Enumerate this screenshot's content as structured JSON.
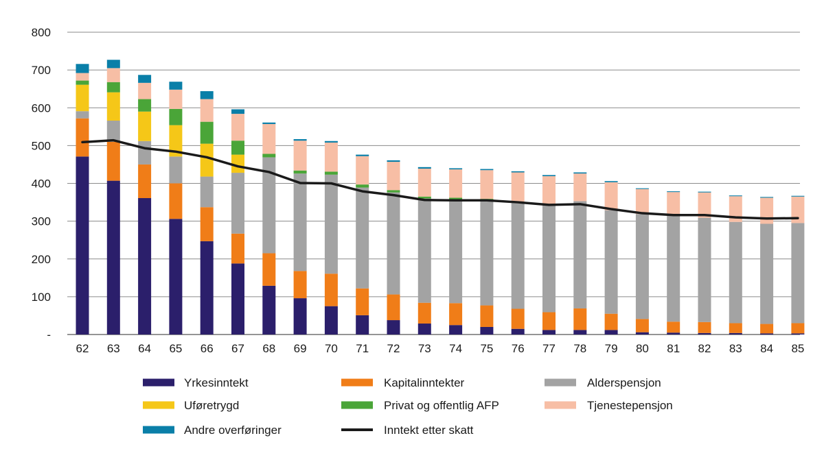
{
  "chart_data": {
    "type": "bar",
    "stacked": true,
    "title": "",
    "xlabel": "",
    "ylabel": "",
    "ylim": [
      0,
      800
    ],
    "yticks": [
      0,
      100,
      200,
      300,
      400,
      500,
      600,
      700,
      800
    ],
    "ytick_labels": [
      "-",
      "100",
      "200",
      "300",
      "400",
      "500",
      "600",
      "700",
      "800"
    ],
    "grid": true,
    "categories": [
      "62",
      "63",
      "64",
      "65",
      "66",
      "67",
      "68",
      "69",
      "70",
      "71",
      "72",
      "73",
      "74",
      "75",
      "76",
      "77",
      "78",
      "79",
      "80",
      "81",
      "82",
      "83",
      "84",
      "85"
    ],
    "series": [
      {
        "name": "Yrkesinntekt",
        "color": "#2b1f6b",
        "values": [
          471,
          407,
          361,
          306,
          247,
          188,
          129,
          96,
          75,
          51,
          38,
          29,
          25,
          20,
          15,
          12,
          12,
          12,
          6,
          5,
          4,
          4,
          3,
          3
        ]
      },
      {
        "name": "Kapitalinntekter",
        "color": "#f07d18",
        "values": [
          101,
          103,
          89,
          94,
          90,
          79,
          86,
          72,
          86,
          71,
          68,
          55,
          58,
          57,
          53,
          47,
          57,
          43,
          35,
          29,
          29,
          26,
          25,
          27
        ]
      },
      {
        "name": "Alderspensjon",
        "color": "#a3a3a3",
        "values": [
          19,
          56,
          62,
          71,
          81,
          161,
          254,
          258,
          262,
          267,
          270,
          276,
          275,
          279,
          282,
          283,
          284,
          274,
          278,
          280,
          276,
          268,
          265,
          265
        ]
      },
      {
        "name": "Uføretrygd",
        "color": "#f5c718",
        "values": [
          70,
          75,
          78,
          83,
          87,
          48,
          0,
          0,
          0,
          0,
          0,
          0,
          0,
          0,
          0,
          0,
          0,
          0,
          0,
          0,
          0,
          0,
          0,
          0
        ]
      },
      {
        "name": "Privat og offentlig AFP",
        "color": "#4aa538",
        "values": [
          11,
          27,
          33,
          43,
          58,
          37,
          9,
          8,
          8,
          8,
          6,
          5,
          4,
          3,
          0,
          0,
          0,
          0,
          0,
          0,
          0,
          0,
          0,
          0
        ]
      },
      {
        "name": "Tjenestepensjon",
        "color": "#f7bea5",
        "values": [
          20,
          37,
          43,
          51,
          60,
          71,
          79,
          79,
          77,
          75,
          75,
          74,
          75,
          76,
          79,
          77,
          73,
          74,
          66,
          63,
          67,
          68,
          69,
          70
        ]
      },
      {
        "name": "Andre overføringer",
        "color": "#0a7fa8",
        "values": [
          24,
          22,
          21,
          21,
          21,
          12,
          4,
          4,
          4,
          4,
          4,
          4,
          3,
          3,
          3,
          3,
          3,
          3,
          2,
          2,
          2,
          2,
          2,
          2
        ]
      }
    ],
    "line": {
      "name": "Inntekt etter skatt",
      "color": "#1a1a1a",
      "values": [
        509,
        514,
        493,
        484,
        469,
        445,
        430,
        401,
        400,
        379,
        369,
        356,
        355,
        355,
        350,
        343,
        345,
        332,
        321,
        316,
        316,
        310,
        307,
        308
      ]
    },
    "legend": {
      "placement": "bottom",
      "order": [
        "Yrkesinntekt",
        "Kapitalinntekter",
        "Alderspensjon",
        "Uføretrygd",
        "Privat og offentlig AFP",
        "Tjenestepensjon",
        "Andre overføringer",
        "Inntekt etter skatt"
      ]
    }
  }
}
